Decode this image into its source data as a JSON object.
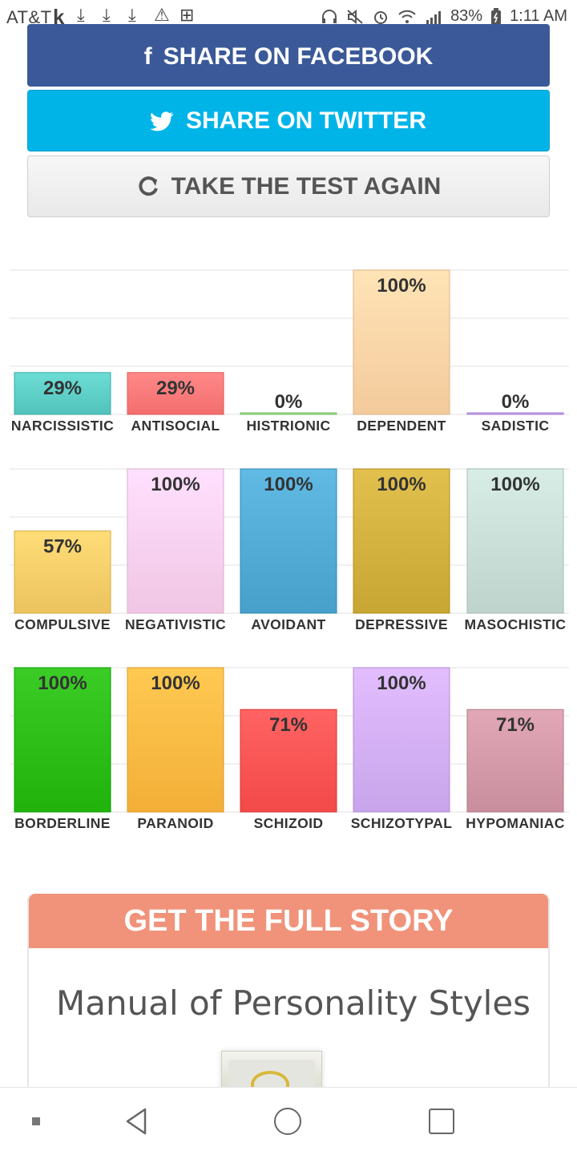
{
  "status_bar": {
    "carrier": "AT&T",
    "k_icon": "k",
    "download_icon": "⤓",
    "warning_icon": "⚠",
    "plus_icon": "⊞",
    "headphone_icon": "headphones-icon",
    "battery": "83%",
    "time": "1:11 AM"
  },
  "buttons": {
    "facebook": {
      "label": "SHARE ON FACEBOOK",
      "icon": "f"
    },
    "twitter": {
      "label": "SHARE ON TWITTER",
      "icon": "🐦"
    },
    "retake": {
      "label": "TAKE THE TEST AGAIN",
      "icon": "↻"
    }
  },
  "chart_data": [
    {
      "type": "bar",
      "categories": [
        "NARCISSISTIC",
        "ANTISOCIAL",
        "HISTRIONIC",
        "DEPENDENT",
        "SADISTIC"
      ],
      "values": [
        29,
        29,
        0,
        100,
        0
      ],
      "value_labels": [
        "29%",
        "29%",
        "0%",
        "100%",
        "0%"
      ],
      "colors": [
        "#5ecfc7",
        "#ff7a7a",
        "#9be08a",
        "#ffd6a8",
        "#c9a3f0"
      ],
      "ylim": [
        0,
        100
      ],
      "grid": true
    },
    {
      "type": "bar",
      "categories": [
        "COMPULSIVE",
        "NEGATIVISTIC",
        "AVOIDANT",
        "DEPRESSIVE",
        "MASOCHISTIC"
      ],
      "values": [
        57,
        100,
        100,
        100,
        100
      ],
      "value_labels": [
        "57%",
        "100%",
        "100%",
        "100%",
        "100%"
      ],
      "colors": [
        "#f8cf6a",
        "#fcd2f0",
        "#52acd6",
        "#d4b23f",
        "#c9dfd8"
      ],
      "ylim": [
        0,
        100
      ],
      "grid": true
    },
    {
      "type": "bar",
      "categories": [
        "BORDERLINE",
        "PARANOID",
        "SCHIZOID",
        "SCHIZOTYPAL",
        "HYPOMANIAC"
      ],
      "values": [
        100,
        100,
        71,
        100,
        71
      ],
      "value_labels": [
        "100%",
        "100%",
        "71%",
        "100%",
        "71%"
      ],
      "colors": [
        "#2dbf18",
        "#ffbb44",
        "#ff5555",
        "#d4b0f6",
        "#d49aaa"
      ],
      "ylim": [
        0,
        100
      ],
      "grid": true
    }
  ],
  "promo": {
    "header": "GET THE FULL STORY",
    "title": "Manual of Personality Styles"
  },
  "nav_bar": {
    "recent_icon": "recent-apps-icon",
    "back_icon": "back-icon",
    "home_icon": "home-icon",
    "overview_icon": "overview-icon"
  }
}
